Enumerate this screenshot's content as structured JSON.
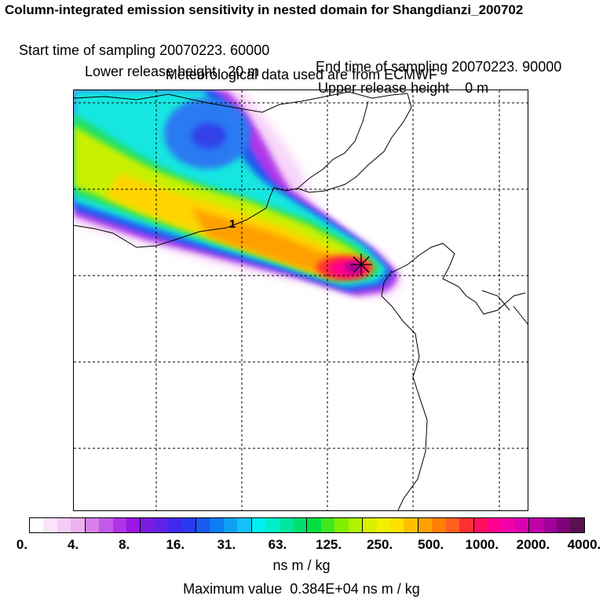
{
  "header": {
    "title": "Column-integrated emission sensitivity in nested domain for Shangdianzi_200702",
    "start_label": "Start time of sampling 20070223. 60000",
    "end_label": "End time of sampling 20070223. 90000",
    "lower_label": "Lower release height   20 m",
    "upper_label": "Upper release height    0 m",
    "met_label": "Meteorological data used are from ECMWF"
  },
  "map": {
    "contour_label": "1",
    "receptor_marker": "plus-marker"
  },
  "legend": {
    "colors": [
      "#ffffff",
      "#fbe4fb",
      "#f5ccf5",
      "#eeb0ef",
      "#d87fe9",
      "#c45ae9",
      "#b132ea",
      "#9a16e4",
      "#7a1ce0",
      "#5f22e6",
      "#4028ef",
      "#2a39f2",
      "#1a58f2",
      "#0c7cf2",
      "#0fa0f5",
      "#14c0f8",
      "#00f0f0",
      "#00eec8",
      "#00e6a0",
      "#00e070",
      "#00e040",
      "#40e820",
      "#80f000",
      "#b0f200",
      "#d8f000",
      "#f0f000",
      "#ffe000",
      "#ffc000",
      "#ffa000",
      "#ff8000",
      "#ff6020",
      "#ff3030",
      "#ff1060",
      "#ff0090",
      "#f000a8",
      "#d800b0",
      "#c000a8",
      "#a0009a",
      "#80007a",
      "#5a1050"
    ],
    "tick_labels": [
      "0.",
      "4.",
      "8.",
      "16.",
      "31.",
      "63.",
      "125.",
      "250.",
      "500.",
      "1000.",
      "2000.",
      "4000."
    ],
    "unit": "ns m / kg",
    "max_text": "Maximum value  0.384E+04 ns m / kg"
  }
}
